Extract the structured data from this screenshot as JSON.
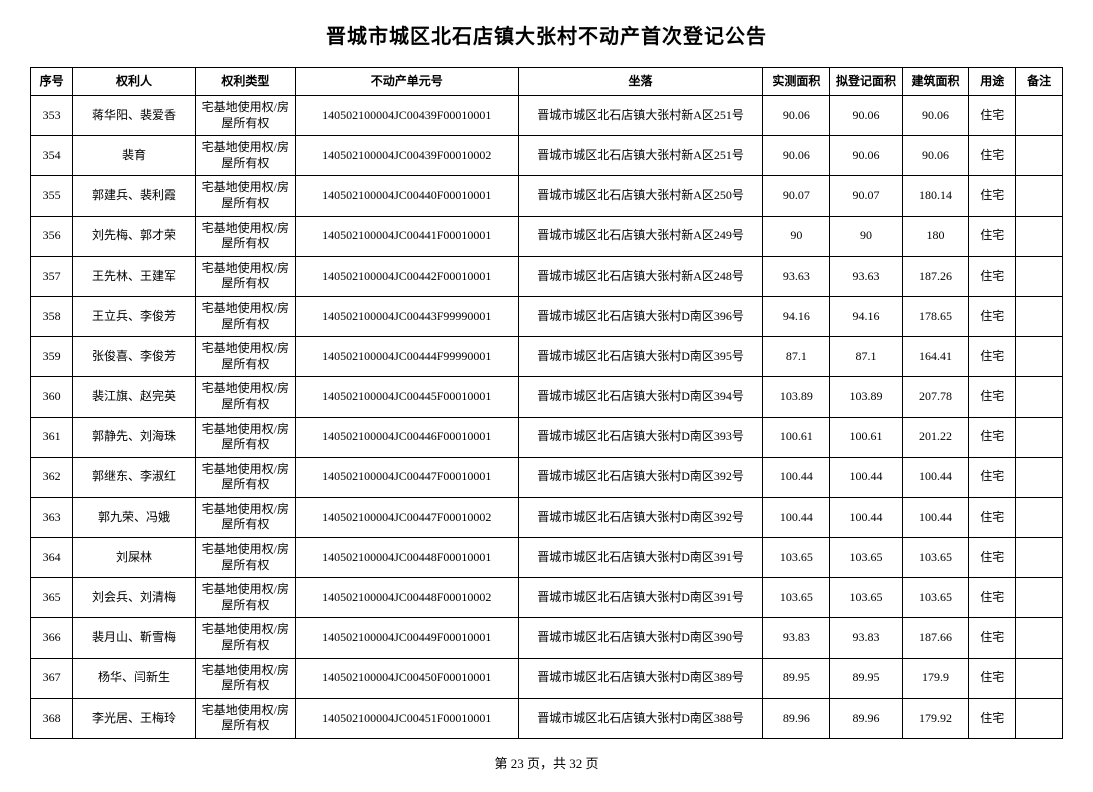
{
  "title": "晋城市城区北石店镇大张村不动产首次登记公告",
  "columns": [
    "序号",
    "权利人",
    "权利类型",
    "不动产单元号",
    "坐落",
    "实测面积",
    "拟登记面积",
    "建筑面积",
    "用途",
    "备注"
  ],
  "rightType": "宅基地使用权/房屋所有权",
  "rows": [
    {
      "seq": "353",
      "owner": "蒋华阳、裴爱香",
      "unit": "140502100004JC00439F00010001",
      "loc": "晋城市城区北石店镇大张村新A区251号",
      "a1": "90.06",
      "a2": "90.06",
      "a3": "90.06",
      "use": "住宅",
      "note": ""
    },
    {
      "seq": "354",
      "owner": "裴育",
      "unit": "140502100004JC00439F00010002",
      "loc": "晋城市城区北石店镇大张村新A区251号",
      "a1": "90.06",
      "a2": "90.06",
      "a3": "90.06",
      "use": "住宅",
      "note": ""
    },
    {
      "seq": "355",
      "owner": "郭建兵、裴利霞",
      "unit": "140502100004JC00440F00010001",
      "loc": "晋城市城区北石店镇大张村新A区250号",
      "a1": "90.07",
      "a2": "90.07",
      "a3": "180.14",
      "use": "住宅",
      "note": ""
    },
    {
      "seq": "356",
      "owner": "刘先梅、郭才荣",
      "unit": "140502100004JC00441F00010001",
      "loc": "晋城市城区北石店镇大张村新A区249号",
      "a1": "90",
      "a2": "90",
      "a3": "180",
      "use": "住宅",
      "note": ""
    },
    {
      "seq": "357",
      "owner": "王先林、王建军",
      "unit": "140502100004JC00442F00010001",
      "loc": "晋城市城区北石店镇大张村新A区248号",
      "a1": "93.63",
      "a2": "93.63",
      "a3": "187.26",
      "use": "住宅",
      "note": ""
    },
    {
      "seq": "358",
      "owner": "王立兵、李俊芳",
      "unit": "140502100004JC00443F99990001",
      "loc": "晋城市城区北石店镇大张村D南区396号",
      "a1": "94.16",
      "a2": "94.16",
      "a3": "178.65",
      "use": "住宅",
      "note": ""
    },
    {
      "seq": "359",
      "owner": "张俊喜、李俊芳",
      "unit": "140502100004JC00444F99990001",
      "loc": "晋城市城区北石店镇大张村D南区395号",
      "a1": "87.1",
      "a2": "87.1",
      "a3": "164.41",
      "use": "住宅",
      "note": ""
    },
    {
      "seq": "360",
      "owner": "裴江旗、赵完英",
      "unit": "140502100004JC00445F00010001",
      "loc": "晋城市城区北石店镇大张村D南区394号",
      "a1": "103.89",
      "a2": "103.89",
      "a3": "207.78",
      "use": "住宅",
      "note": ""
    },
    {
      "seq": "361",
      "owner": "郭静先、刘海珠",
      "unit": "140502100004JC00446F00010001",
      "loc": "晋城市城区北石店镇大张村D南区393号",
      "a1": "100.61",
      "a2": "100.61",
      "a3": "201.22",
      "use": "住宅",
      "note": ""
    },
    {
      "seq": "362",
      "owner": "郭继东、李淑红",
      "unit": "140502100004JC00447F00010001",
      "loc": "晋城市城区北石店镇大张村D南区392号",
      "a1": "100.44",
      "a2": "100.44",
      "a3": "100.44",
      "use": "住宅",
      "note": ""
    },
    {
      "seq": "363",
      "owner": "郭九荣、冯娥",
      "unit": "140502100004JC00447F00010002",
      "loc": "晋城市城区北石店镇大张村D南区392号",
      "a1": "100.44",
      "a2": "100.44",
      "a3": "100.44",
      "use": "住宅",
      "note": ""
    },
    {
      "seq": "364",
      "owner": "刘屎林",
      "unit": "140502100004JC00448F00010001",
      "loc": "晋城市城区北石店镇大张村D南区391号",
      "a1": "103.65",
      "a2": "103.65",
      "a3": "103.65",
      "use": "住宅",
      "note": ""
    },
    {
      "seq": "365",
      "owner": "刘会兵、刘清梅",
      "unit": "140502100004JC00448F00010002",
      "loc": "晋城市城区北石店镇大张村D南区391号",
      "a1": "103.65",
      "a2": "103.65",
      "a3": "103.65",
      "use": "住宅",
      "note": ""
    },
    {
      "seq": "366",
      "owner": "裴月山、靳雪梅",
      "unit": "140502100004JC00449F00010001",
      "loc": "晋城市城区北石店镇大张村D南区390号",
      "a1": "93.83",
      "a2": "93.83",
      "a3": "187.66",
      "use": "住宅",
      "note": ""
    },
    {
      "seq": "367",
      "owner": "杨华、闫新生",
      "unit": "140502100004JC00450F00010001",
      "loc": "晋城市城区北石店镇大张村D南区389号",
      "a1": "89.95",
      "a2": "89.95",
      "a3": "179.9",
      "use": "住宅",
      "note": ""
    },
    {
      "seq": "368",
      "owner": "李光居、王梅玲",
      "unit": "140502100004JC00451F00010001",
      "loc": "晋城市城区北石店镇大张村D南区388号",
      "a1": "89.96",
      "a2": "89.96",
      "a3": "179.92",
      "use": "住宅",
      "note": ""
    }
  ],
  "footer": "第 23 页，共 32 页",
  "style": {
    "background_color": "#ffffff",
    "text_color": "#000000",
    "border_color": "#000000",
    "title_fontsize": 20,
    "cell_fontsize": 12,
    "footer_fontsize": 13,
    "font_family": "SimSun"
  }
}
